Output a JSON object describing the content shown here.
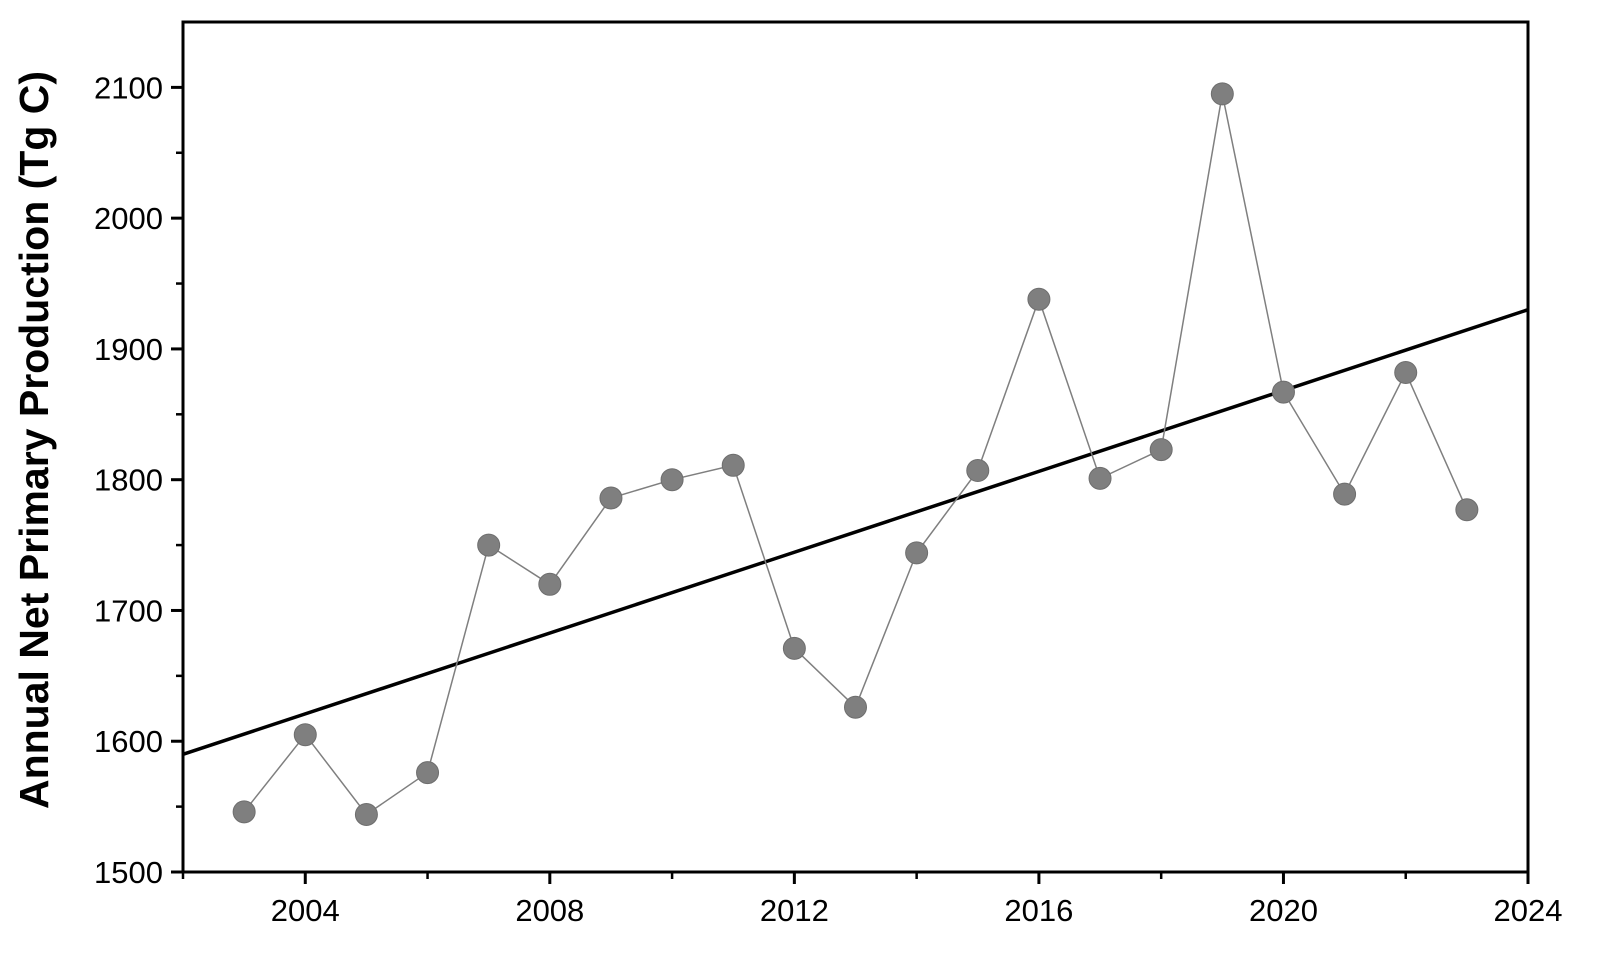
{
  "chart_data": {
    "type": "line",
    "title": "",
    "xlabel": "",
    "ylabel": "Annual Net Primary Production (Tg C)",
    "xlim": [
      2002,
      2024
    ],
    "ylim": [
      1500,
      2150
    ],
    "x_ticks": [
      2004,
      2008,
      2012,
      2016,
      2020,
      2024
    ],
    "x_tick_labels": [
      "2004",
      "2008",
      "2012",
      "2016",
      "2020",
      "2024"
    ],
    "x_minor_ticks": [
      2002,
      2006,
      2010,
      2014,
      2018,
      2022
    ],
    "y_ticks": [
      1500,
      1600,
      1700,
      1800,
      1900,
      2000,
      2100
    ],
    "y_tick_labels": [
      "1500",
      "1600",
      "1700",
      "1800",
      "1900",
      "2000",
      "2100"
    ],
    "y_minor_ticks": [
      1550,
      1650,
      1750,
      1850,
      1950,
      2050
    ],
    "grid": false,
    "legend": "none",
    "series": [
      {
        "x": [
          2003,
          2004,
          2005,
          2006,
          2007,
          2008,
          2009,
          2010,
          2011,
          2012,
          2013,
          2014,
          2015,
          2016,
          2017,
          2018,
          2019,
          2020,
          2021,
          2022,
          2023
        ],
        "values": [
          1546,
          1605,
          1544,
          1576,
          1750,
          1720,
          1786,
          1800,
          1811,
          1671,
          1626,
          1744,
          1807,
          1938,
          1801,
          1823,
          2095,
          1867,
          1789,
          1882,
          1777
        ],
        "color": "#7f7f7f",
        "markers": true
      }
    ],
    "trendline": {
      "x": [
        2002,
        2024
      ],
      "values": [
        1590,
        1930
      ],
      "color": "#000000"
    }
  }
}
